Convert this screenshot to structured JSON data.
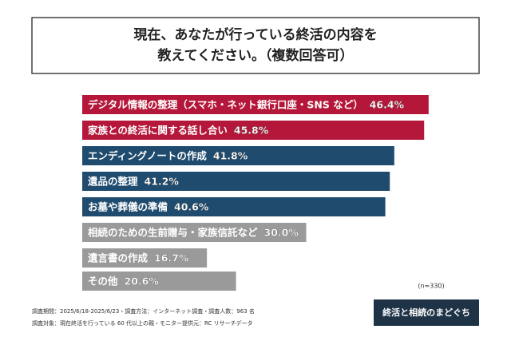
{
  "chart_data": {
    "type": "bar",
    "orientation": "horizontal",
    "title_lines": [
      "現在、あなたが行っている終活の内容を",
      "教えてください。（複数回答可）"
    ],
    "categories": [
      "デジタル情報の整理（スマホ・ネット銀行口座・SNS など）",
      "家族との終活に関する話し合い",
      "エンディングノートの作成",
      "遺品の整理",
      "お墓や葬儀の準備",
      "相続のための生前贈与・家族信託など",
      "遺言書の作成",
      "その他"
    ],
    "values": [
      46.4,
      45.8,
      41.8,
      41.2,
      40.6,
      30.0,
      16.7,
      20.6
    ],
    "value_labels": [
      "46.4%",
      "45.8%",
      "41.8%",
      "41.2%",
      "40.6%",
      "30.0%",
      "16.7%",
      "20.6%"
    ],
    "colors": [
      "#b5173a",
      "#b5173a",
      "#1f4b6e",
      "#1f4b6e",
      "#1f4b6e",
      "#9a9a9a",
      "#9a9a9a",
      "#9a9a9a"
    ],
    "sample_note": "(n=330)",
    "footnotes": [
      "調査期間：2025/6/18-2025/6/23・調査方法：インターネット調査・調査人数：963 名",
      "調査対象：現在終活を行っている 60 代以上の親・モニター提供元：RC リサーチデータ"
    ],
    "logo": "終活と相続のまどぐち"
  }
}
